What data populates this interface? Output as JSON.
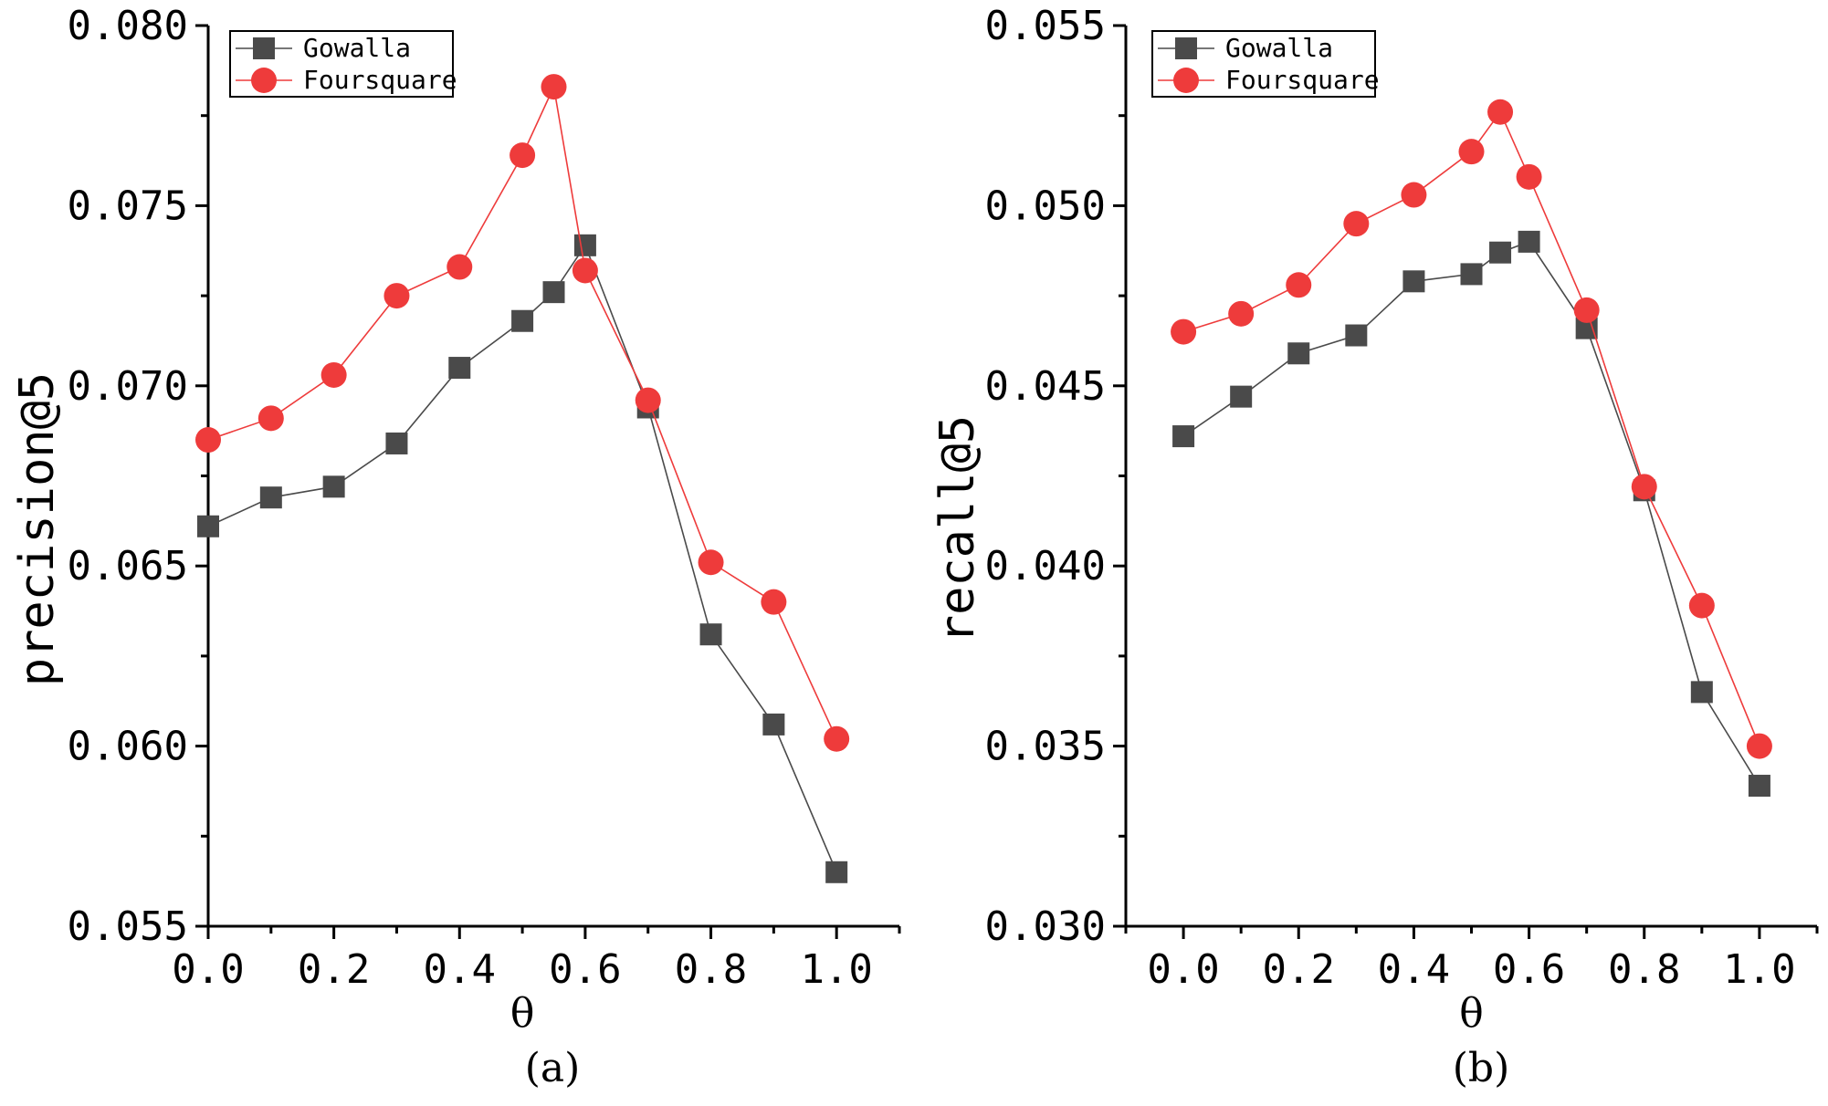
{
  "chart_data": [
    {
      "type": "line",
      "caption": "(a)",
      "xlabel": "θ",
      "ylabel": "precision@5",
      "xlim": [
        0,
        1.1
      ],
      "ylim": [
        0.055,
        0.08
      ],
      "xticks": [
        0,
        0.2,
        0.4,
        0.6,
        0.8,
        1.0
      ],
      "xtick_labels": [
        "0.0",
        "0.2",
        "0.4",
        "0.6",
        "0.8",
        "1.0"
      ],
      "yticks": [
        0.055,
        0.06,
        0.065,
        0.07,
        0.075,
        0.08
      ],
      "ytick_labels": [
        "0.055",
        "0.060",
        "0.065",
        "0.070",
        "0.075",
        "0.080"
      ],
      "legend_position": "top-left",
      "x": [
        0.0,
        0.1,
        0.2,
        0.3,
        0.4,
        0.5,
        0.55,
        0.6,
        0.7,
        0.8,
        0.9,
        1.0
      ],
      "series": [
        {
          "name": "Gowalla",
          "marker": "square",
          "color": "#4a4a4a",
          "values": [
            0.0661,
            0.0669,
            0.0672,
            0.0684,
            0.0705,
            0.0718,
            0.0726,
            0.0739,
            0.0694,
            0.0631,
            0.0606,
            0.0565
          ]
        },
        {
          "name": "Foursquare",
          "marker": "circle",
          "color": "#ee3b3b",
          "values": [
            0.0685,
            0.0691,
            0.0703,
            0.0725,
            0.0733,
            0.0764,
            0.0783,
            0.0732,
            0.0696,
            0.0651,
            0.064,
            0.0602
          ]
        }
      ]
    },
    {
      "type": "line",
      "caption": "(b)",
      "xlabel": "θ",
      "ylabel": "recall@5",
      "xlim": [
        -0.1,
        1.1
      ],
      "ylim": [
        0.03,
        0.055
      ],
      "xticks": [
        0,
        0.2,
        0.4,
        0.6,
        0.8,
        1.0
      ],
      "xtick_labels": [
        "0.0",
        "0.2",
        "0.4",
        "0.6",
        "0.8",
        "1.0"
      ],
      "yticks": [
        0.03,
        0.035,
        0.04,
        0.045,
        0.05,
        0.055
      ],
      "ytick_labels": [
        "0.030",
        "0.035",
        "0.040",
        "0.045",
        "0.050",
        "0.055"
      ],
      "legend_position": "top-left",
      "x": [
        0.0,
        0.1,
        0.2,
        0.3,
        0.4,
        0.5,
        0.55,
        0.6,
        0.7,
        0.8,
        0.9,
        1.0
      ],
      "series": [
        {
          "name": "Gowalla",
          "marker": "square",
          "color": "#4a4a4a",
          "values": [
            0.0436,
            0.0447,
            0.0459,
            0.0464,
            0.0479,
            0.0481,
            0.0487,
            0.049,
            0.0466,
            0.0421,
            0.0365,
            0.0339
          ]
        },
        {
          "name": "Foursquare",
          "marker": "circle",
          "color": "#ee3b3b",
          "values": [
            0.0465,
            0.047,
            0.0478,
            0.0495,
            0.0503,
            0.0515,
            0.0526,
            0.0508,
            0.0471,
            0.0422,
            0.0389,
            0.035
          ]
        }
      ]
    }
  ]
}
